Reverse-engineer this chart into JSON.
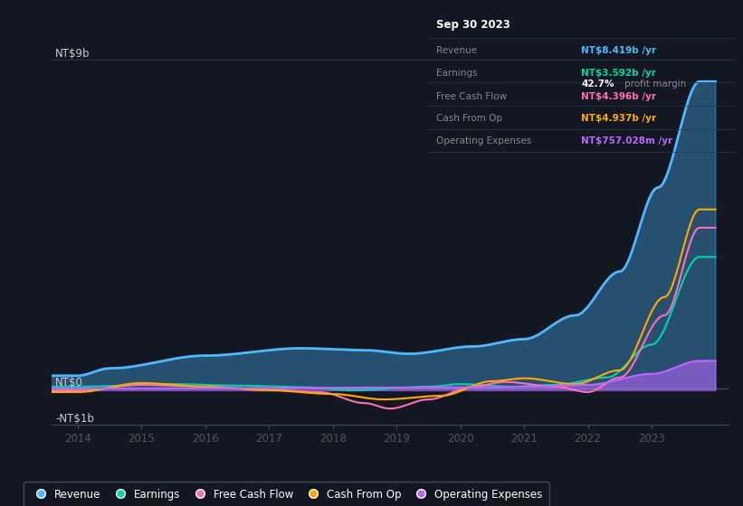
{
  "bg_color": "#131722",
  "chart_bg": "#131722",
  "ylabel_top": "NT$9b",
  "ylabel_zero": "NT$0",
  "ylabel_bottom": "-NT$1b",
  "revenue_color": "#4db8ff",
  "earnings_color": "#00d4aa",
  "fcf_color": "#ff6eb4",
  "cashfromop_color": "#ffaa00",
  "opex_color": "#bb66ff",
  "info_box": {
    "date": "Sep 30 2023",
    "revenue_label": "Revenue",
    "revenue_val": "NT$8.419b",
    "earnings_label": "Earnings",
    "earnings_val": "NT$3.592b",
    "margin": "42.7%",
    "margin_text": "profit margin",
    "fcf_label": "Free Cash Flow",
    "fcf_val": "NT$4.396b",
    "cop_label": "Cash From Op",
    "cop_val": "NT$4.937b",
    "opex_label": "Operating Expenses",
    "opex_val": "NT$757.028m"
  },
  "legend_labels": [
    "Revenue",
    "Earnings",
    "Free Cash Flow",
    "Cash From Op",
    "Operating Expenses"
  ],
  "xlim": [
    2013.6,
    2024.2
  ],
  "ylim": [
    -1.0,
    9.8
  ],
  "xticks": [
    2014,
    2015,
    2016,
    2017,
    2018,
    2019,
    2020,
    2021,
    2022,
    2023
  ],
  "grid_top_y": 9.0,
  "grid_mid_y": 0.0,
  "grid_bot_y": -1.0
}
